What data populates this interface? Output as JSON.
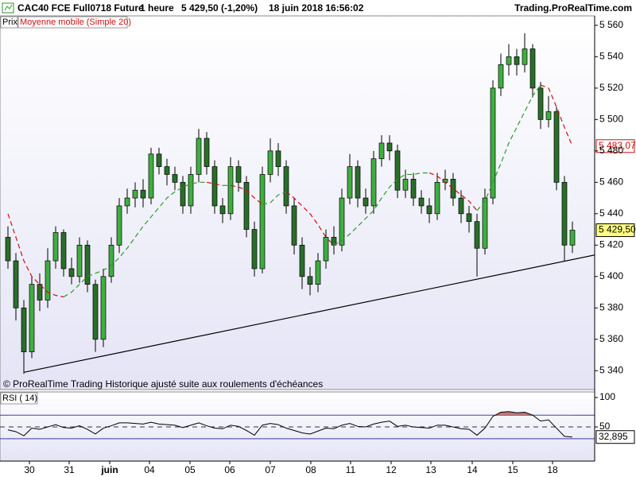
{
  "chart_data": [
    {
      "type": "candlestick",
      "title": "CAC40 FCE Full0718 Future",
      "timeframe": "1 heure",
      "last_change": "5 429,50 (-1,20%)",
      "timestamp": "18 juin 2018 16:56:02",
      "source": "Trading.ProRealTime.com",
      "footnote": "© ProRealTime Trading  Historique ajusté suite aux roulements d'échéances",
      "xlim": [
        -1,
        73.8
      ],
      "xticks": [
        {
          "value": 2.7,
          "label": "30"
        },
        {
          "value": 7.7,
          "label": "31"
        },
        {
          "value": 12.8,
          "label": "juin"
        },
        {
          "value": 17.8,
          "label": "04"
        },
        {
          "value": 22.9,
          "label": "05"
        },
        {
          "value": 27.9,
          "label": "06"
        },
        {
          "value": 33,
          "label": "07"
        },
        {
          "value": 38.1,
          "label": "08"
        },
        {
          "value": 43.1,
          "label": "11"
        },
        {
          "value": 48.2,
          "label": "12"
        },
        {
          "value": 53.2,
          "label": "13"
        },
        {
          "value": 58.4,
          "label": "14"
        },
        {
          "value": 63.5,
          "label": "15"
        },
        {
          "value": 68.5,
          "label": "18"
        }
      ],
      "ylim": [
        5328,
        5566
      ],
      "yticks": [
        {
          "value": 5340,
          "label": "5 340"
        },
        {
          "value": 5360,
          "label": "5 360"
        },
        {
          "value": 5380,
          "label": "5 380"
        },
        {
          "value": 5400,
          "label": "5 400"
        },
        {
          "value": 5420,
          "label": "5 420"
        },
        {
          "value": 5440,
          "label": "5 440"
        },
        {
          "value": 5460,
          "label": "5 460"
        },
        {
          "value": 5480,
          "label": "5 480"
        },
        {
          "value": 5500,
          "label": "5 500"
        },
        {
          "value": 5520,
          "label": "5 520"
        },
        {
          "value": 5540,
          "label": "5 540"
        },
        {
          "value": 5560,
          "label": "5 560"
        }
      ],
      "series": [
        {
          "name": "Prix",
          "type": "candlestick",
          "up_color": "#3fae3f",
          "down_color": "#2a6e2a",
          "value_label": "5 429,50",
          "open": [
            5425,
            5410,
            5380,
            5352,
            5395,
            5385,
            5410,
            5428,
            5405,
            5400,
            5420,
            5395,
            5360,
            5400,
            5420,
            5445,
            5450,
            5455,
            5450,
            5478,
            5470,
            5465,
            5460,
            5445,
            5465,
            5488,
            5470,
            5445,
            5440,
            5470,
            5460,
            5430,
            5405,
            5465,
            5480,
            5470,
            5445,
            5420,
            5400,
            5395,
            5410,
            5425,
            5420,
            5450,
            5470,
            5450,
            5445,
            5475,
            5485,
            5480,
            5455,
            5462,
            5450,
            5445,
            5440,
            5460,
            5462,
            5450,
            5440,
            5435,
            5418,
            5450,
            5520,
            5535,
            5540,
            5535,
            5545,
            5520,
            5500,
            5505,
            5460,
            5420
          ],
          "high": [
            5432,
            5415,
            5385,
            5400,
            5402,
            5418,
            5432,
            5430,
            5412,
            5425,
            5423,
            5398,
            5405,
            5425,
            5450,
            5456,
            5460,
            5462,
            5482,
            5482,
            5475,
            5470,
            5464,
            5470,
            5494,
            5492,
            5474,
            5450,
            5476,
            5474,
            5464,
            5435,
            5470,
            5488,
            5485,
            5474,
            5450,
            5425,
            5406,
            5415,
            5430,
            5432,
            5456,
            5478,
            5474,
            5456,
            5480,
            5490,
            5490,
            5484,
            5468,
            5466,
            5455,
            5450,
            5466,
            5468,
            5466,
            5455,
            5445,
            5440,
            5456,
            5525,
            5542,
            5548,
            5545,
            5555,
            5548,
            5524,
            5515,
            5508,
            5464,
            5435
          ],
          "low": [
            5405,
            5372,
            5338,
            5348,
            5378,
            5380,
            5405,
            5400,
            5395,
            5396,
            5390,
            5352,
            5355,
            5396,
            5415,
            5440,
            5444,
            5444,
            5446,
            5465,
            5458,
            5455,
            5440,
            5440,
            5460,
            5465,
            5440,
            5434,
            5436,
            5454,
            5425,
            5400,
            5402,
            5460,
            5464,
            5440,
            5414,
            5392,
            5388,
            5390,
            5405,
            5414,
            5416,
            5446,
            5444,
            5440,
            5440,
            5470,
            5474,
            5450,
            5450,
            5445,
            5440,
            5434,
            5436,
            5455,
            5445,
            5434,
            5428,
            5400,
            5414,
            5446,
            5515,
            5528,
            5528,
            5530,
            5514,
            5494,
            5495,
            5455,
            5410,
            5415
          ],
          "close": [
            5410,
            5380,
            5352,
            5395,
            5385,
            5410,
            5428,
            5405,
            5400,
            5420,
            5395,
            5360,
            5400,
            5420,
            5445,
            5450,
            5455,
            5450,
            5478,
            5470,
            5465,
            5460,
            5445,
            5465,
            5488,
            5470,
            5445,
            5440,
            5470,
            5460,
            5430,
            5405,
            5465,
            5480,
            5470,
            5445,
            5420,
            5400,
            5395,
            5410,
            5425,
            5420,
            5450,
            5470,
            5450,
            5445,
            5475,
            5485,
            5480,
            5455,
            5462,
            5450,
            5445,
            5440,
            5460,
            5462,
            5450,
            5440,
            5435,
            5418,
            5450,
            5520,
            5535,
            5540,
            5535,
            5545,
            5520,
            5500,
            5505,
            5460,
            5420,
            5429.5
          ]
        },
        {
          "name": "Moyenne mobile (Simple 20)",
          "type": "line",
          "rising_color": "#2a9d2a",
          "falling_color": "#cc1010",
          "value_label": "5 483,07",
          "values": [
            5440,
            5425,
            5410,
            5400,
            5395,
            5390,
            5388,
            5387,
            5390,
            5395,
            5400,
            5402,
            5404,
            5407,
            5412,
            5418,
            5425,
            5432,
            5438,
            5444,
            5450,
            5454,
            5457,
            5459,
            5460,
            5460,
            5459,
            5458,
            5458,
            5457,
            5455,
            5450,
            5446,
            5447,
            5452,
            5454,
            5450,
            5445,
            5440,
            5433,
            5425,
            5420,
            5423,
            5427,
            5432,
            5437,
            5442,
            5450,
            5457,
            5462,
            5465,
            5465,
            5466,
            5466,
            5464,
            5460,
            5456,
            5452,
            5448,
            5442,
            5448,
            5460,
            5472,
            5485,
            5495,
            5505,
            5515,
            5522,
            5520,
            5508,
            5495,
            5483.07
          ]
        }
      ],
      "trendline": {
        "x": [
          2,
          76
        ],
        "y": [
          5339,
          5416
        ],
        "color": "#000000"
      }
    },
    {
      "type": "line",
      "title": "RSI ( 14)",
      "xlim": [
        -1,
        73.8
      ],
      "ylim": [
        -8,
        109.5
      ],
      "yticks": [
        100,
        50
      ],
      "bands": [
        30,
        70
      ],
      "band_color": "#3a3aa0",
      "midline": 50,
      "fill_color": "#c07878",
      "series": [
        {
          "color": "#000000",
          "value_label": "32,895",
          "values": [
            45,
            42,
            35,
            48,
            46,
            50,
            54,
            49,
            48,
            52,
            46,
            38,
            48,
            52,
            57,
            57,
            56,
            55,
            58,
            55,
            54,
            53,
            49,
            53,
            57,
            52,
            48,
            47,
            53,
            51,
            44,
            36,
            53,
            56,
            54,
            48,
            44,
            40,
            38,
            43,
            48,
            47,
            53,
            56,
            51,
            50,
            55,
            58,
            60,
            51,
            53,
            50,
            49,
            48,
            53,
            53,
            50,
            47,
            46,
            36,
            48,
            68,
            75,
            76,
            74,
            75,
            70,
            60,
            62,
            48,
            34,
            32.895
          ]
        }
      ]
    }
  ]
}
